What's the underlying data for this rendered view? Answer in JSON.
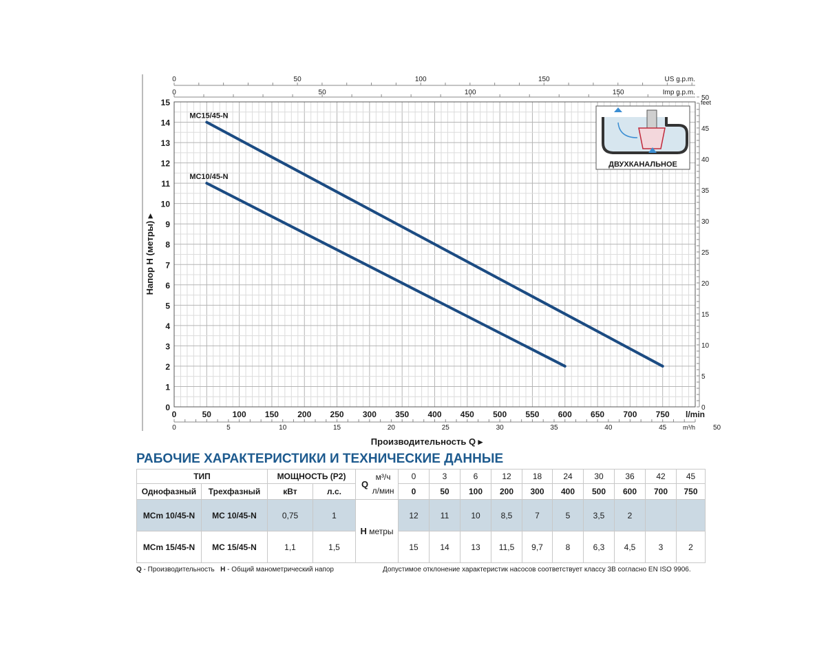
{
  "chart_data": {
    "type": "line",
    "xlabel": "Производительность Q",
    "ylabel": "Напор H (метры)",
    "x_unit": "l/min",
    "xlim": [
      0,
      800
    ],
    "ylim": [
      0,
      15
    ],
    "x_ticks": [
      0,
      50,
      100,
      150,
      200,
      250,
      300,
      350,
      400,
      450,
      500,
      550,
      600,
      650,
      700,
      750
    ],
    "y_ticks": [
      0,
      1,
      2,
      3,
      4,
      5,
      6,
      7,
      8,
      9,
      10,
      11,
      12,
      13,
      14,
      15
    ],
    "series": [
      {
        "name": "MC15/45-N",
        "x": [
          50,
          750
        ],
        "y": [
          14,
          2
        ]
      },
      {
        "name": "MC10/45-N",
        "x": [
          50,
          600
        ],
        "y": [
          11,
          2
        ]
      }
    ],
    "secondary_axes": {
      "us_gpm": {
        "unit": "US g.p.m.",
        "ticks": [
          0,
          50,
          100,
          150
        ]
      },
      "imp_gpm": {
        "unit": "Imp g.p.m.",
        "ticks": [
          0,
          50,
          100,
          150
        ]
      },
      "m3h": {
        "unit": "m³/h",
        "ticks": [
          0,
          5,
          10,
          15,
          20,
          25,
          30,
          35,
          40,
          45,
          50
        ]
      },
      "feet": {
        "unit": "feet",
        "ticks": [
          0,
          5,
          10,
          15,
          20,
          25,
          30,
          35,
          40,
          45,
          50
        ]
      }
    },
    "inset_label": "ДВУХКАНАЛЬНОЕ"
  },
  "table": {
    "title": "РАБОЧИЕ ХАРАКТЕРИСТИКИ И ТЕХНИЧЕСКИЕ ДАННЫЕ",
    "type_header": "ТИП",
    "single_phase": "Однофазный",
    "three_phase": "Трехфазный",
    "power_header": "МОЩНОСТЬ (P2)",
    "kw": "кВт",
    "hp": "л.с.",
    "q_label": "Q",
    "q_unit_m3h": "м³/ч",
    "q_unit_lmin": "л/мин",
    "h_label": "H",
    "h_unit": "метры",
    "q_m3h": [
      "0",
      "3",
      "6",
      "12",
      "18",
      "24",
      "30",
      "36",
      "42",
      "45"
    ],
    "q_lmin": [
      "0",
      "50",
      "100",
      "200",
      "300",
      "400",
      "500",
      "600",
      "700",
      "750"
    ],
    "rows": [
      {
        "single": "MCm 10/45-N",
        "three": "MC 10/45-N",
        "kw": "0,75",
        "hp": "1",
        "h": [
          "12",
          "11",
          "10",
          "8,5",
          "7",
          "5",
          "3,5",
          "2",
          "",
          ""
        ]
      },
      {
        "single": "MCm 15/45-N",
        "three": "MC 15/45-N",
        "kw": "1,1",
        "hp": "1,5",
        "h": [
          "15",
          "14",
          "13",
          "11,5",
          "9,7",
          "8",
          "6,3",
          "4,5",
          "3",
          "2"
        ]
      }
    ]
  },
  "footer": {
    "q_letter": "Q",
    "q_text": " - Производительность",
    "h_letter": "H",
    "h_text": " - Общий манометрический напор",
    "note": "Допустимое отклонение характеристик насосов соответствует классу 3B согласно EN ISO 9906."
  },
  "colors": {
    "curve": "#1b4b82",
    "accent": "#1d5a8e",
    "shade": "#cbd9e3",
    "grid": "#c9c9c9"
  }
}
